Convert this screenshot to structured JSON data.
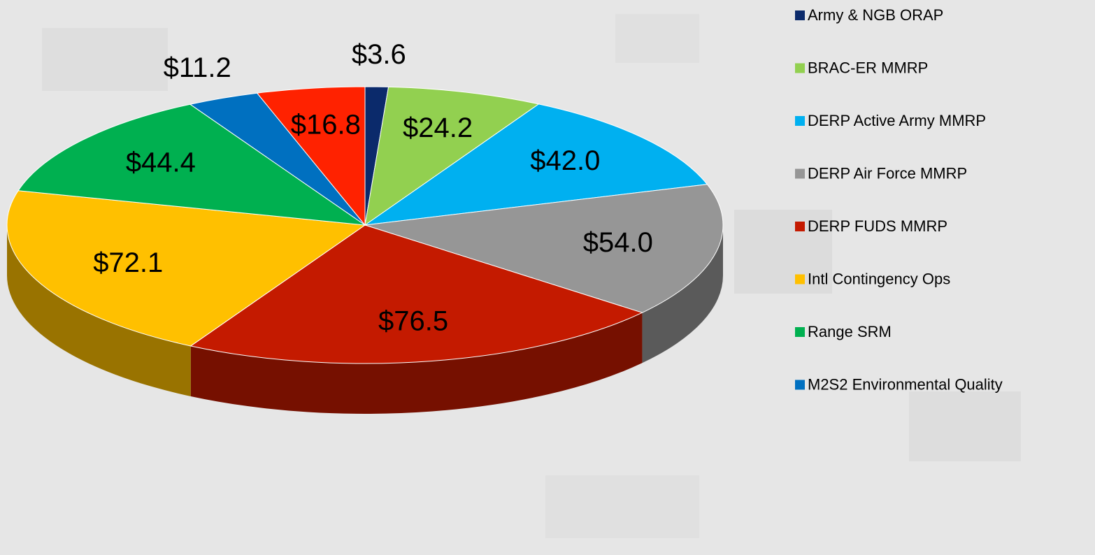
{
  "chart_data": {
    "type": "pie3d",
    "categories": [
      "Army & NGB ORAP",
      "BRAC-ER MMRP",
      "DERP Active Army MMRP",
      "DERP Air Force MMRP",
      "DERP FUDS MMRP",
      "Intl Contingency Ops",
      "Range SRM",
      "M2S2 Environmental Quality",
      null
    ],
    "values": [
      3.6,
      24.2,
      42.0,
      54.0,
      76.5,
      72.1,
      44.4,
      11.2,
      16.8
    ],
    "value_labels": [
      "$3.6",
      "$24.2",
      "$42.0",
      "$54.0",
      "$76.5",
      "$72.1",
      "$44.4",
      "$11.2",
      "$16.8"
    ],
    "colors": [
      "#0b2a6b",
      "#92d050",
      "#00b0f0",
      "#969696",
      "#c41a00",
      "#ffc000",
      "#00b050",
      "#0070c0",
      "#ff2200"
    ]
  }
}
